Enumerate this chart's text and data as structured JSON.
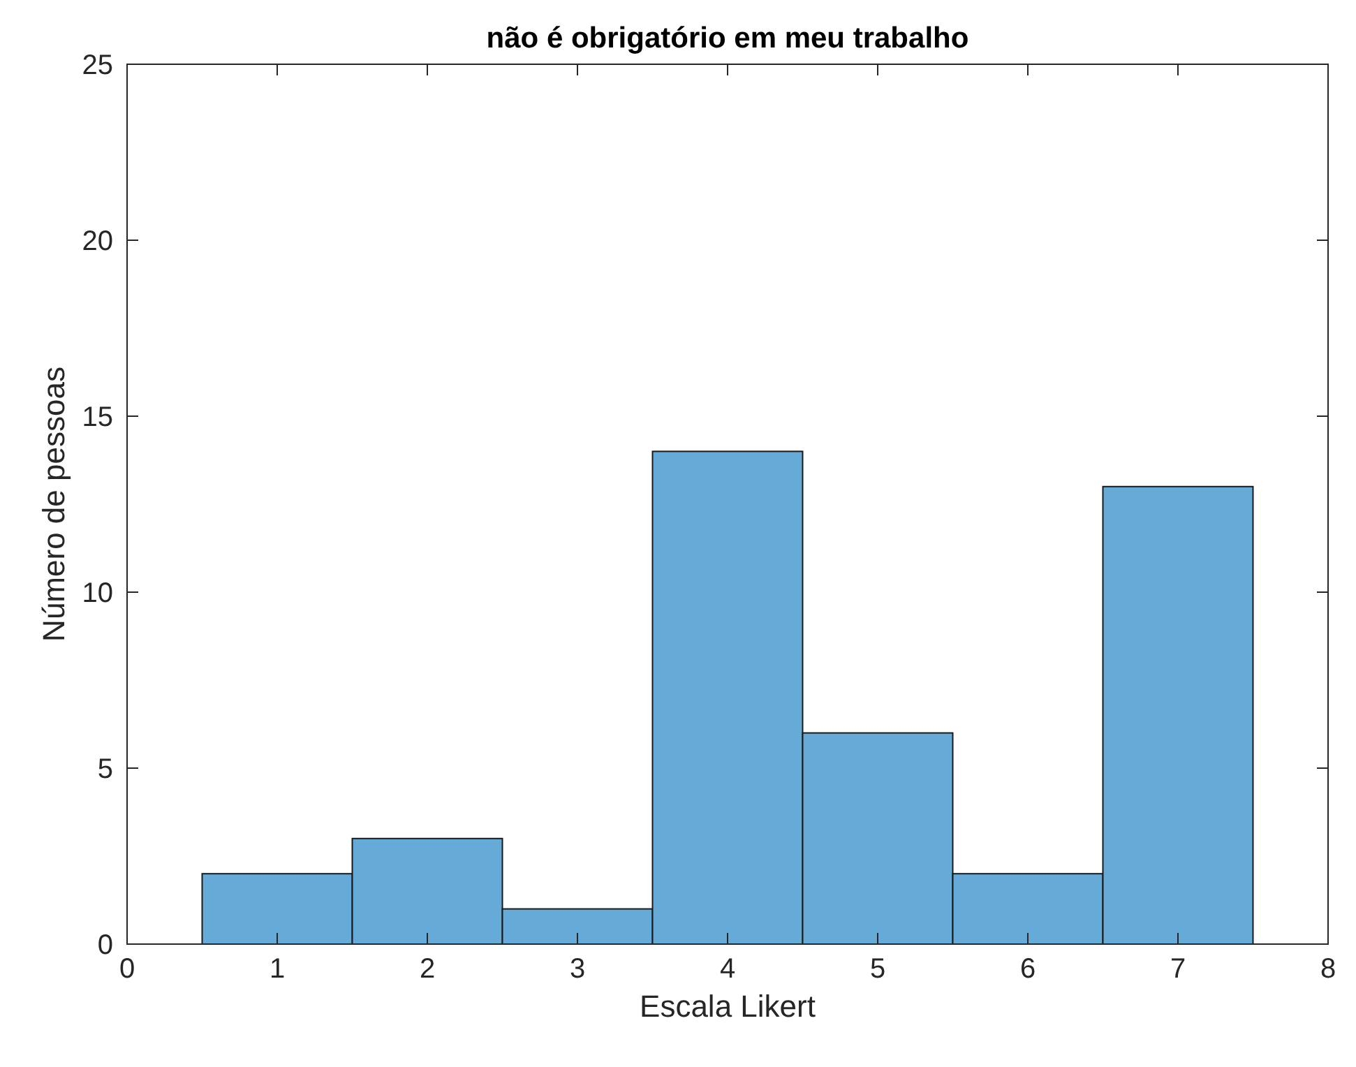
{
  "chart_data": {
    "type": "histogram",
    "title": "não é obrigatório em meu trabalho",
    "xlabel": "Escala Likert",
    "ylabel": "Número de pessoas",
    "bins": [
      0.5,
      1.5,
      2.5,
      3.5,
      4.5,
      5.5,
      6.5,
      7.5
    ],
    "values": [
      2,
      3,
      1,
      14,
      6,
      2,
      13
    ],
    "color": "#66aad7",
    "xlim": [
      0,
      8
    ],
    "xticks": [
      0,
      1,
      2,
      3,
      4,
      5,
      6,
      7,
      8
    ],
    "ylim": [
      0,
      25
    ],
    "yticks": [
      0,
      5,
      10,
      15,
      20,
      25
    ],
    "grid": false
  }
}
